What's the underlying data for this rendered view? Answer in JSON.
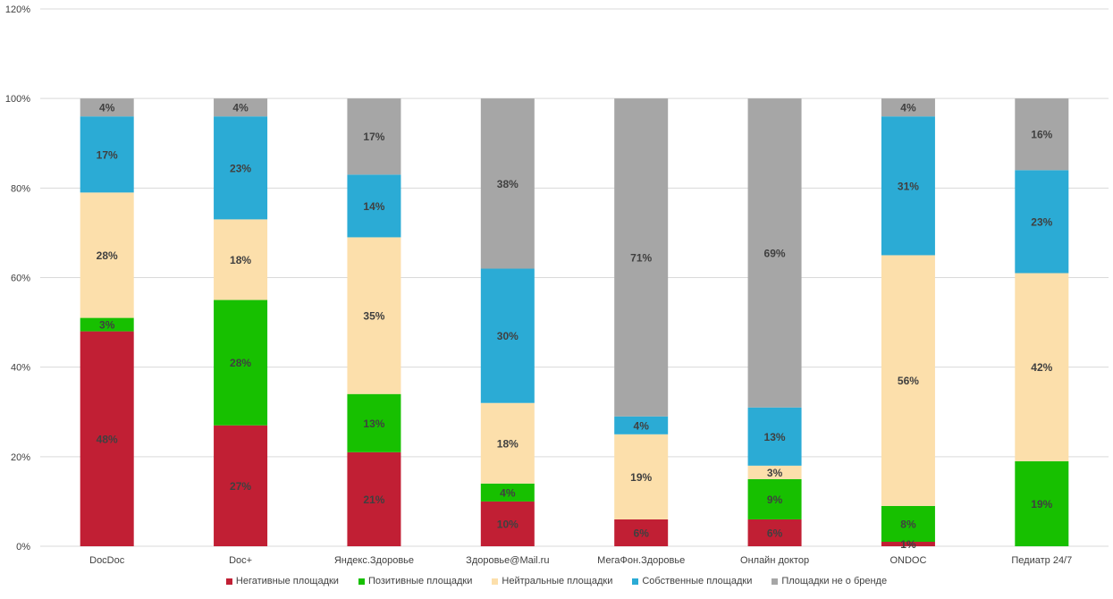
{
  "chart_data": {
    "type": "bar",
    "stacked": true,
    "title": "",
    "xlabel": "",
    "ylabel": "",
    "ylim": [
      0,
      1.2
    ],
    "y_ticks": [
      "0%",
      "20%",
      "40%",
      "60%",
      "80%",
      "100%",
      "120%"
    ],
    "y_tick_values": [
      0,
      0.2,
      0.4,
      0.6,
      0.8,
      1.0,
      1.2
    ],
    "categories": [
      "DocDoc",
      "Doc+",
      "Яндекс.Здоровье",
      "Здоровье@Mail.ru",
      "МегаФон.Здоровье",
      "Онлайн доктор",
      "ONDOC",
      "Педиатр 24/7"
    ],
    "series": [
      {
        "name": "Негативные площадки",
        "color": "#C11F34",
        "values": [
          0.48,
          0.27,
          0.21,
          0.1,
          0.06,
          0.06,
          0.01,
          0.0
        ],
        "labels": [
          "48%",
          "27%",
          "21%",
          "10%",
          "6%",
          "6%",
          "1%",
          ""
        ]
      },
      {
        "name": "Позитивные площадки",
        "color": "#17C000",
        "values": [
          0.03,
          0.28,
          0.13,
          0.04,
          0.0,
          0.09,
          0.08,
          0.19
        ],
        "labels": [
          "3%",
          "28%",
          "13%",
          "4%",
          "",
          "9%",
          "8%",
          "19%"
        ]
      },
      {
        "name": "Нейтральные площадки",
        "color": "#FCDFAB",
        "values": [
          0.28,
          0.18,
          0.35,
          0.18,
          0.19,
          0.03,
          0.56,
          0.42
        ],
        "labels": [
          "28%",
          "18%",
          "35%",
          "18%",
          "19%",
          "3%",
          "56%",
          "42%"
        ]
      },
      {
        "name": "Собственные площадки",
        "color": "#2BABD5",
        "values": [
          0.17,
          0.23,
          0.14,
          0.3,
          0.04,
          0.13,
          0.31,
          0.23
        ],
        "labels": [
          "17%",
          "23%",
          "14%",
          "30%",
          "4%",
          "13%",
          "31%",
          "23%"
        ]
      },
      {
        "name": "Площадки не о бренде",
        "color": "#A6A6A6",
        "values": [
          0.04,
          0.04,
          0.17,
          0.38,
          0.71,
          0.69,
          0.04,
          0.16
        ],
        "labels": [
          "4%",
          "4%",
          "17%",
          "38%",
          "71%",
          "69%",
          "4%",
          "16%"
        ]
      }
    ],
    "legend_position": "bottom",
    "grid": true
  },
  "colors": {
    "grid": "#D9D9D9",
    "axis_text": "#404040",
    "label_text": "#404040"
  }
}
